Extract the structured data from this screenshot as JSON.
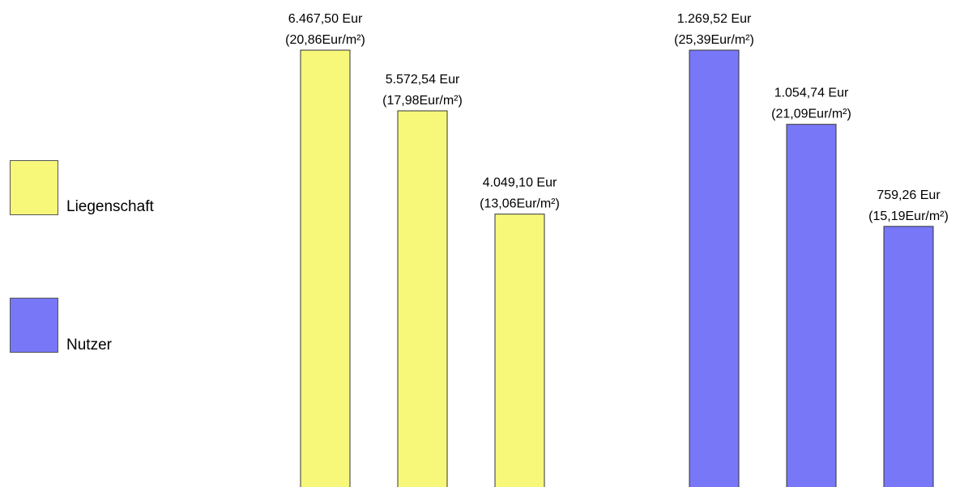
{
  "chart_data": {
    "type": "bar",
    "colors": {
      "Liegenschaft": "#f7f77a",
      "Nutzer": "#7777f7",
      "bar_border": "#333333"
    },
    "legend": {
      "placement": "left",
      "entries": [
        {
          "name": "Liegenschaft",
          "color": "#f7f77a"
        },
        {
          "name": "Nutzer",
          "color": "#7777f7"
        }
      ]
    },
    "grid": false,
    "groups": [
      {
        "series": "Liegenschaft",
        "bars": [
          {
            "value": 6467.5,
            "label": "6.467,50 Eur",
            "sublabel": "(20,86Eur/m²)"
          },
          {
            "value": 5572.54,
            "label": "5.572,54 Eur",
            "sublabel": "(17,98Eur/m²)"
          },
          {
            "value": 4049.1,
            "label": "4.049,10 Eur",
            "sublabel": "(13,06Eur/m²)"
          }
        ]
      },
      {
        "series": "Nutzer",
        "bars": [
          {
            "value": 1269.52,
            "label": "1.269,52 Eur",
            "sublabel": "(25,39Eur/m²)"
          },
          {
            "value": 1054.74,
            "label": "1.054,74 Eur",
            "sublabel": "(21,09Eur/m²)"
          },
          {
            "value": 759.26,
            "label": "759,26 Eur",
            "sublabel": "(15,19Eur/m²)"
          }
        ]
      }
    ]
  }
}
